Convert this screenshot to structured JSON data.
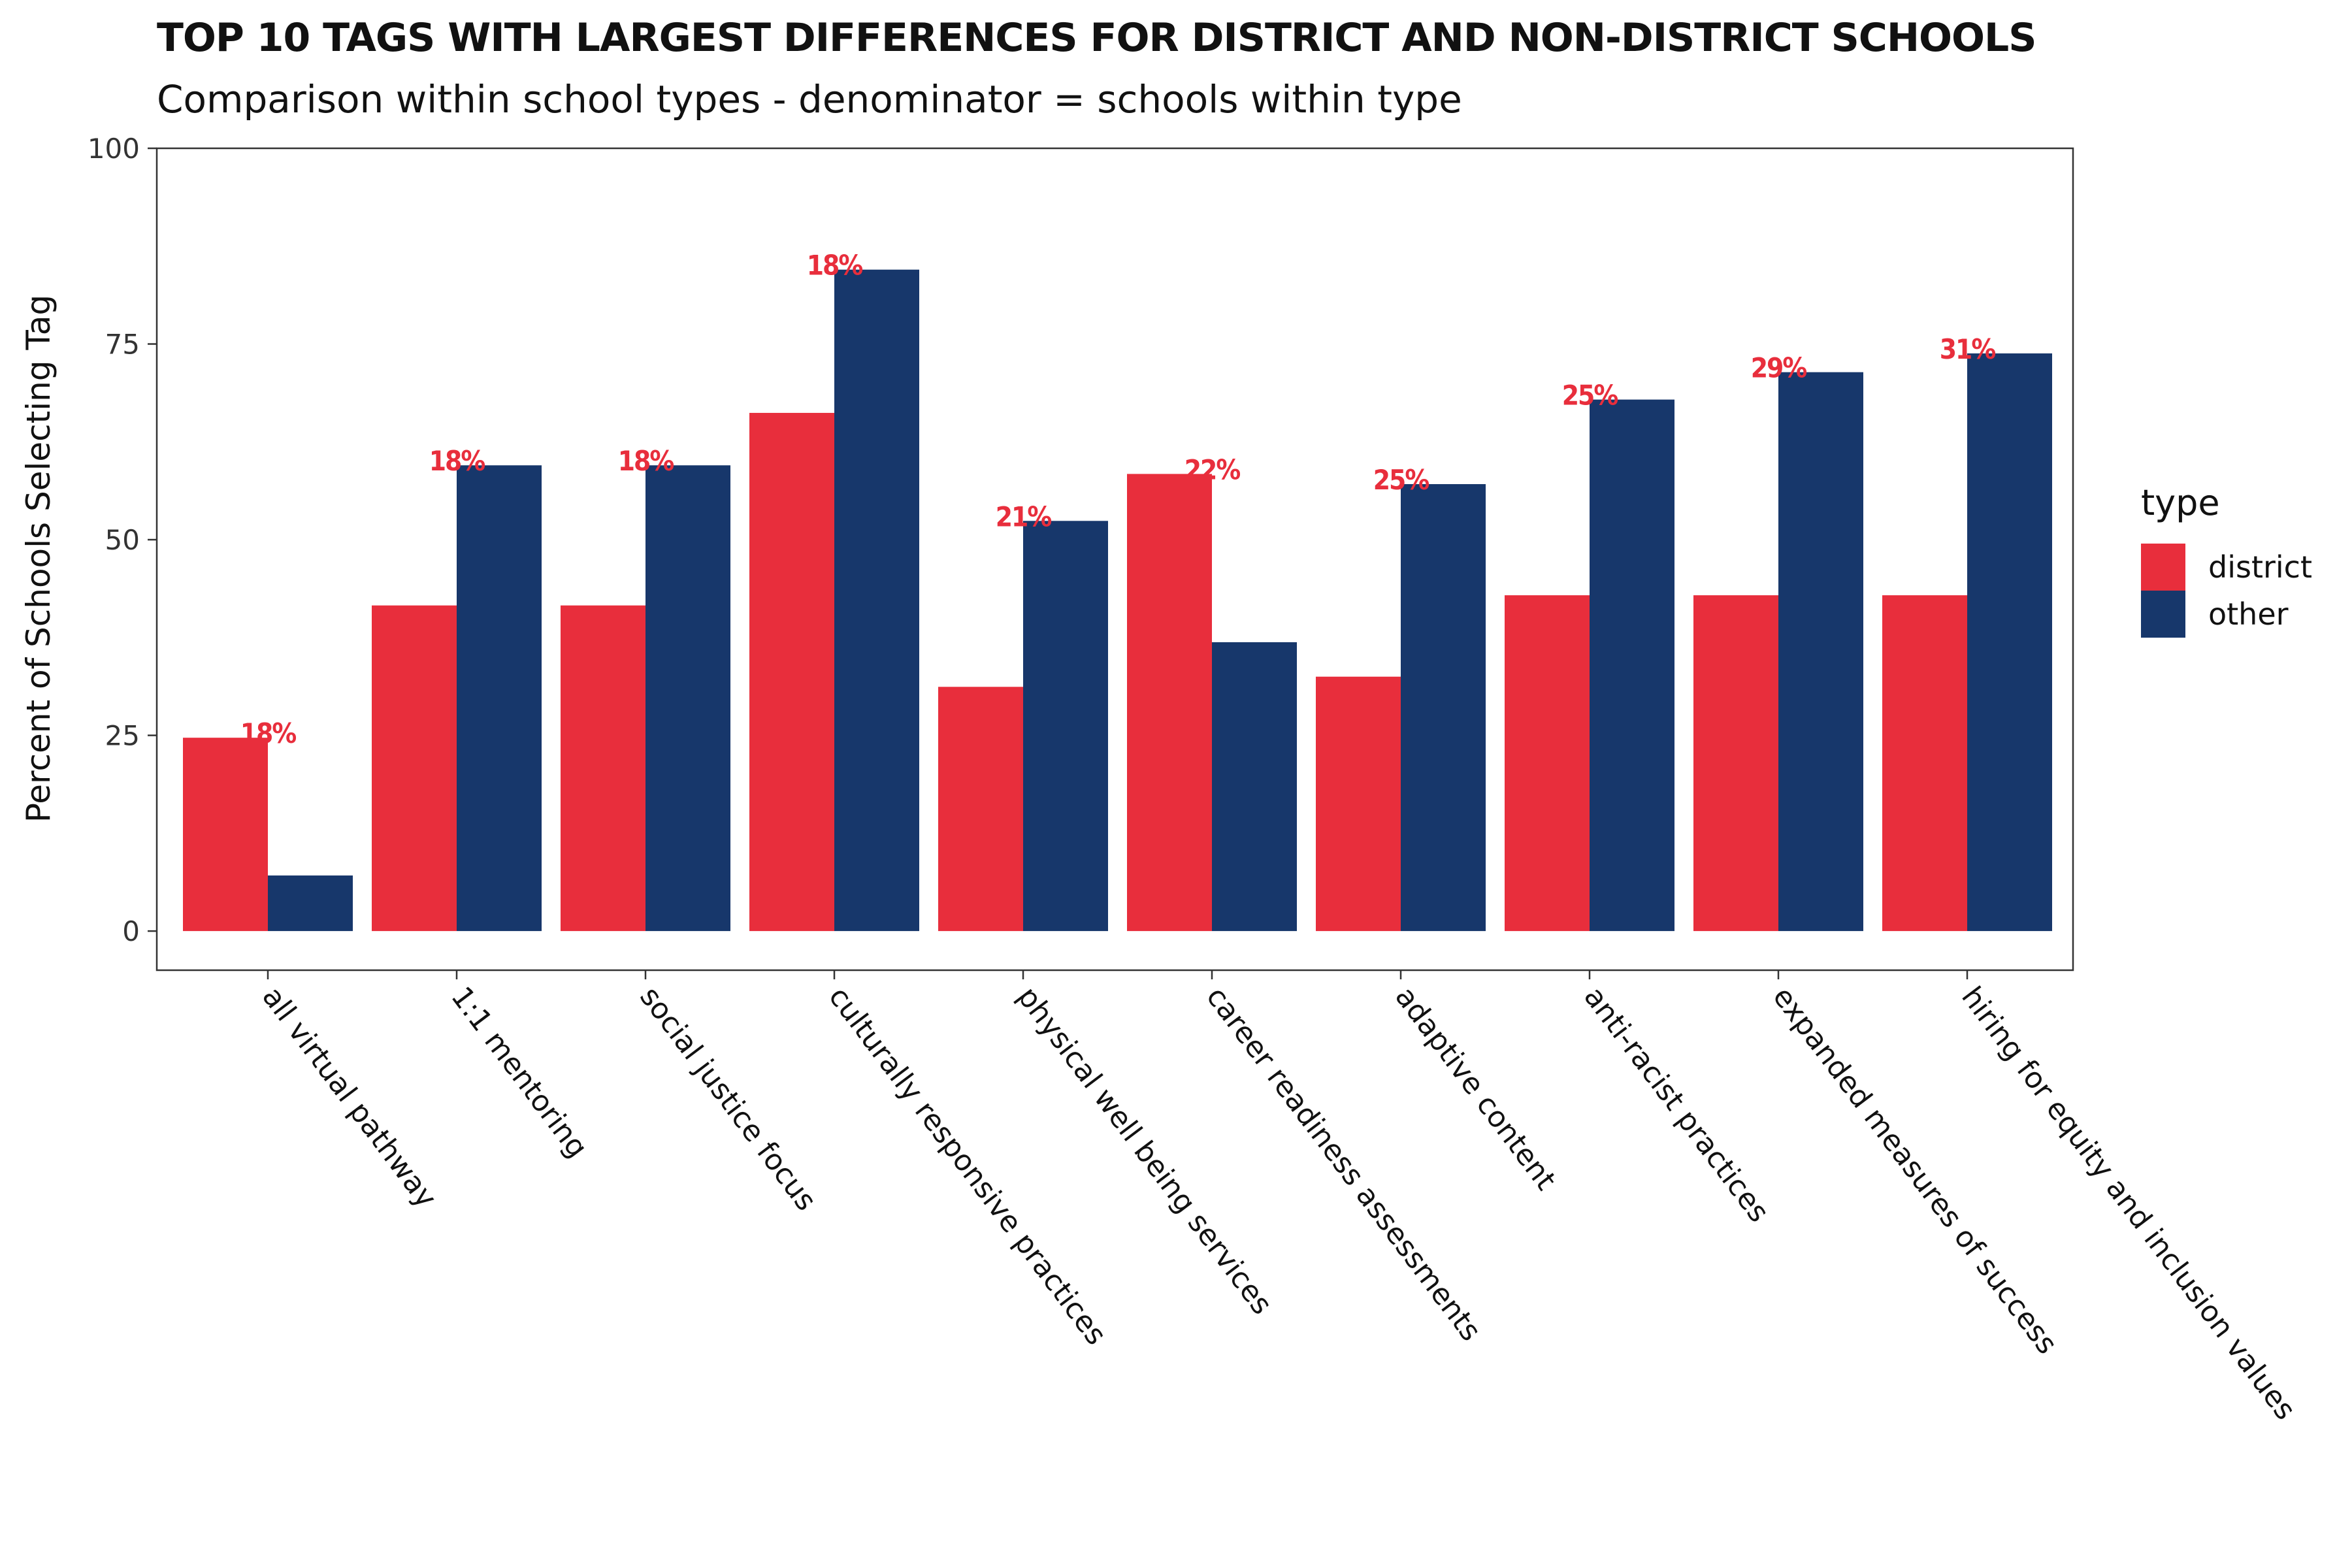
{
  "chart_data": {
    "type": "bar",
    "title": "TOP 10 TAGS WITH LARGEST DIFFERENCES FOR DISTRICT AND NON-DISTRICT SCHOOLS",
    "subtitle": "Comparison within school types - denominator = schools within type",
    "xlabel": "",
    "ylabel": "Percent of Schools Selecting Tag",
    "ylim": [
      -5,
      100
    ],
    "yticks": [
      0,
      25,
      50,
      75,
      100
    ],
    "grid": false,
    "legend": {
      "title": "type",
      "position": "right"
    },
    "categories": [
      "all virtual pathway",
      "1:1 mentoring",
      "social justice focus",
      "culturally responsive practices",
      "physical well being services",
      "career readiness assessments",
      "adaptive content",
      "anti-racist practices",
      "expanded measures of success",
      "hiring for equity and inclusion values"
    ],
    "series": [
      {
        "name": "district",
        "color": "#e82e3c",
        "values": [
          24.7,
          41.6,
          41.6,
          66.2,
          31.2,
          58.4,
          32.5,
          42.9,
          42.9,
          42.9
        ]
      },
      {
        "name": "other",
        "color": "#17376b",
        "values": [
          7.1,
          59.5,
          59.5,
          84.5,
          52.4,
          36.9,
          57.1,
          67.9,
          71.4,
          73.8
        ]
      }
    ],
    "annotations": {
      "color": "#e82e3c",
      "labels": [
        "18%",
        "18%",
        "18%",
        "18%",
        "21%",
        "22%",
        "25%",
        "25%",
        "29%",
        "31%"
      ]
    }
  }
}
